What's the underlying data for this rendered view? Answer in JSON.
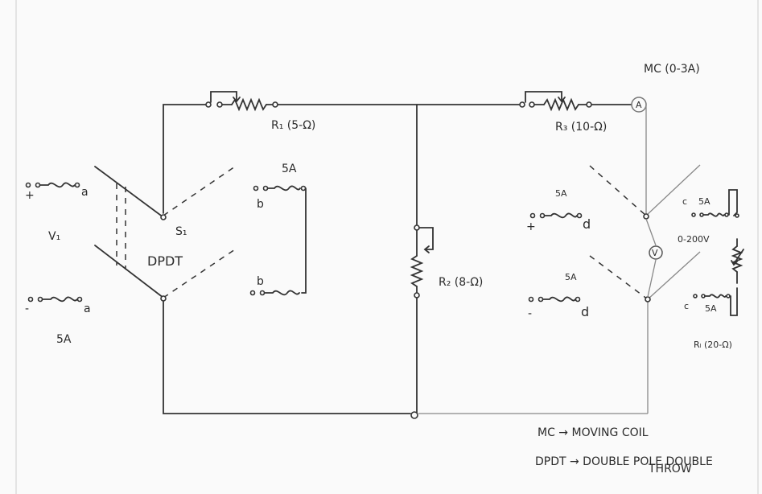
{
  "labels": {
    "mc_meter": "MC (0-3A)",
    "ammeter_symbol": "A",
    "voltmeter_symbol": "V",
    "r1": "R₁ (5-Ω)",
    "r3": "R₃ (10-Ω)",
    "r2": "R₂ (8-Ω)",
    "rl": "Rₗ (20-Ω)",
    "s1": "S₁",
    "dpdt": "DPDT",
    "v1": "V₁",
    "fuse_5a_left": "5A",
    "fuse_5a_b": "5A",
    "fuse_5a_d_top": "5A",
    "fuse_5a_d_bottom": "5A",
    "fuse_5a_c_top": "5A",
    "fuse_5a_c_bottom": "5A",
    "plus": "+",
    "minus": "-",
    "a": "a",
    "b": "b",
    "c": "c",
    "d": "d",
    "voltmeter_range": "0-200V"
  },
  "legend": {
    "mc_line": "MC → MOVING COIL",
    "dpdt_line_1": "DPDT → DOUBLE POLE DOUBLE",
    "dpdt_line_2": "THROW"
  }
}
